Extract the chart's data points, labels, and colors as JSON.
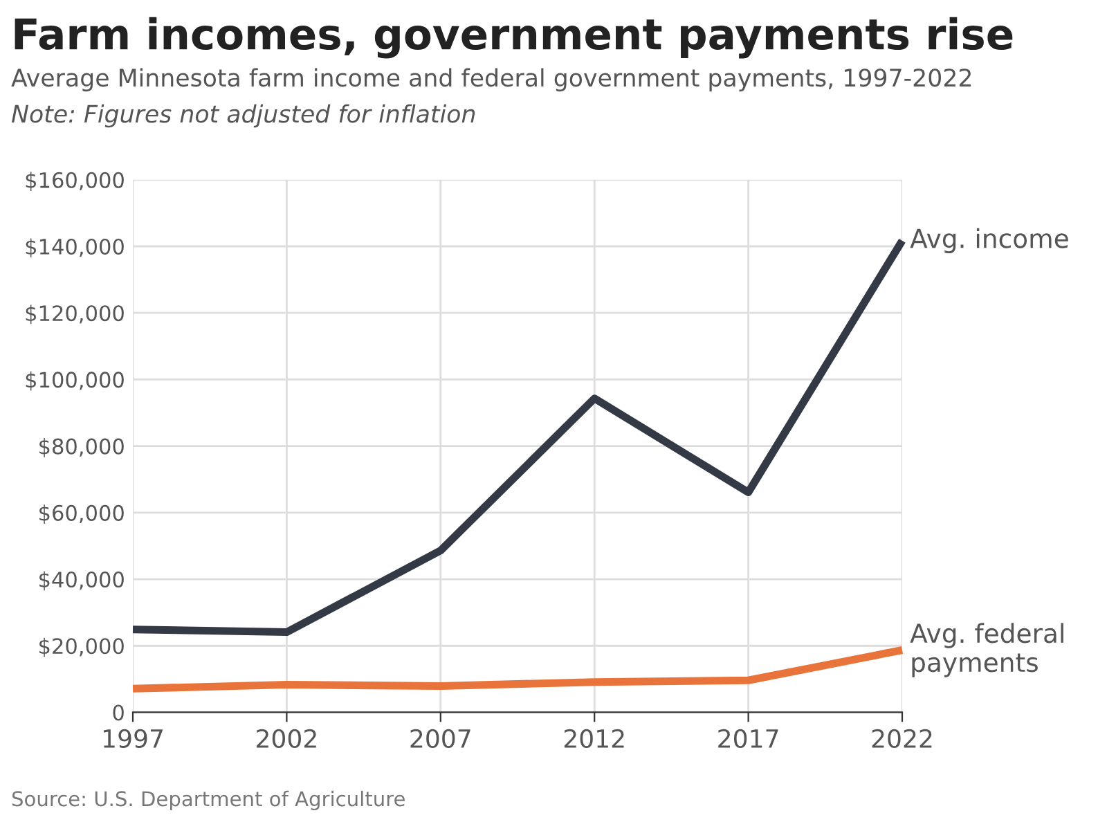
{
  "chart_data": {
    "type": "line",
    "title": "Farm incomes, government payments rise",
    "subtitle": "Average Minnesota farm income and federal government payments, 1997-2022",
    "annotations": [
      "Note: Figures not adjusted for inflation",
      "Source: U.S. Department of Agriculture"
    ],
    "x": [
      1997,
      2002,
      2007,
      2012,
      2017,
      2022
    ],
    "series": [
      {
        "name": "Avg. income",
        "color": "#343a45",
        "values": [
          24900,
          24100,
          48600,
          94300,
          66100,
          141700
        ]
      },
      {
        "name": "Avg. federal payments",
        "color": "#e8743b",
        "values": [
          7100,
          8300,
          7900,
          9100,
          9600,
          18700
        ]
      }
    ],
    "xlim": [
      1997,
      2022
    ],
    "xticks": [
      1997,
      2002,
      2007,
      2012,
      2017,
      2022
    ],
    "ylim": [
      0,
      160000
    ],
    "yticks": [
      0,
      {
        "value": 20000,
        "label": "$20,000"
      },
      {
        "value": 40000,
        "label": "$40,000"
      },
      {
        "value": 60000,
        "label": "$60,000"
      },
      {
        "value": 80000,
        "label": "$80,000"
      },
      {
        "value": 100000,
        "label": "$100,000"
      },
      {
        "value": 120000,
        "label": "$120,000"
      },
      {
        "value": 140000,
        "label": "$140,000"
      },
      {
        "value": 160000,
        "label": "$160,000"
      }
    ],
    "grid": true,
    "legend": false,
    "marker": "none",
    "line_style": "solid"
  }
}
